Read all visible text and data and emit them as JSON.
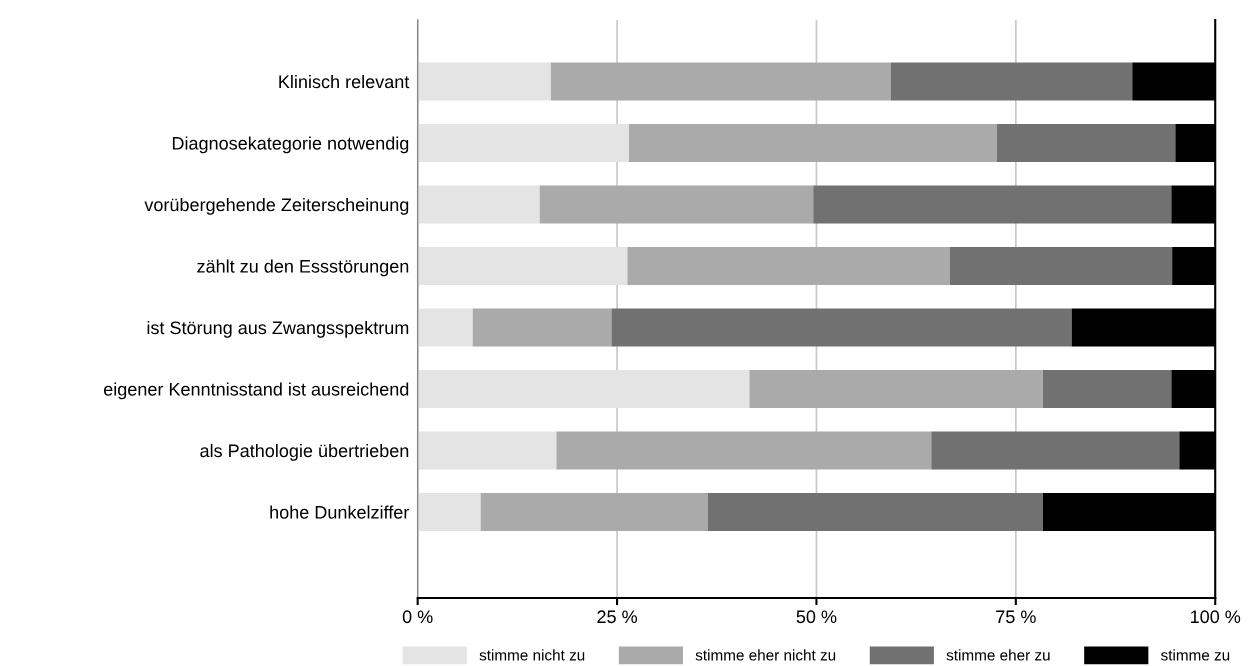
{
  "chart_data": {
    "type": "bar",
    "orientation": "horizontal",
    "stacked": true,
    "categories": [
      "Klinisch relevant",
      "Diagnosekategorie notwendig",
      "vorübergehende Zeiterscheinung",
      "zählt zu den Essstörungen",
      "ist Störung aus Zwangsspektrum",
      "eigener Kenntnisstand ist ausreichend",
      "als Pathologie übertrieben",
      "hohe Dunkelziffer"
    ],
    "series": [
      {
        "name": "stimme nicht zu",
        "color": "#e4e4e4",
        "values": [
          16.7,
          26.5,
          15.3,
          26.3,
          6.9,
          41.6,
          17.4,
          7.9
        ]
      },
      {
        "name": "stimme eher nicht zu",
        "color": "#aaaaaa",
        "values": [
          42.6,
          46.1,
          34.3,
          40.4,
          17.4,
          36.8,
          47.0,
          28.5
        ]
      },
      {
        "name": "stimme eher zu",
        "color": "#717171",
        "values": [
          30.3,
          22.4,
          44.9,
          27.9,
          57.7,
          16.1,
          31.1,
          42.0
        ]
      },
      {
        "name": "stimme zu",
        "color": "#000000",
        "values": [
          10.4,
          5.0,
          5.5,
          5.4,
          18.0,
          5.5,
          4.5,
          21.6
        ]
      }
    ],
    "xlim": [
      0,
      100
    ],
    "xticks": [
      {
        "value": 0,
        "label": "0 %"
      },
      {
        "value": 25,
        "label": "25 %"
      },
      {
        "value": 50,
        "label": "50 %"
      },
      {
        "value": 75,
        "label": "75 %"
      },
      {
        "value": 100,
        "label": "100 %"
      }
    ],
    "grid": "x",
    "legend": "bottom"
  }
}
